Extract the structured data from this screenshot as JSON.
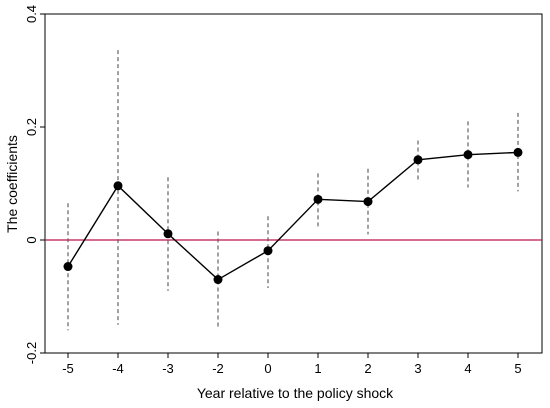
{
  "chart_data": {
    "type": "scatter",
    "title": "",
    "xlabel": "Year relative to the policy shock",
    "ylabel": "The coefficients",
    "x": [
      -5,
      -4,
      -3,
      -2,
      0,
      1,
      2,
      3,
      4,
      5
    ],
    "x_tick_labels": [
      "-5",
      "-4",
      "-3",
      "-2",
      "0",
      "1",
      "2",
      "3",
      "4",
      "5"
    ],
    "y_ticks": [
      -0.2,
      0,
      0.2,
      0.4
    ],
    "y_tick_labels": [
      "-0.2",
      "0",
      "0.2",
      "0.4"
    ],
    "ylim": [
      -0.2,
      0.4
    ],
    "reference_line": {
      "y": 0,
      "color": "#c0134f"
    },
    "series": [
      {
        "values": [
          -0.047,
          0.096,
          0.011,
          -0.07,
          -0.019,
          0.072,
          0.068,
          0.142,
          0.151,
          0.155
        ],
        "ci_lower": [
          -0.16,
          -0.15,
          -0.09,
          -0.155,
          -0.085,
          0.023,
          0.01,
          0.107,
          0.093,
          0.086
        ],
        "ci_upper": [
          0.065,
          0.336,
          0.111,
          0.015,
          0.042,
          0.118,
          0.126,
          0.176,
          0.21,
          0.225
        ],
        "color": "#000000",
        "ci_color": "#555555"
      }
    ],
    "grid": false
  }
}
